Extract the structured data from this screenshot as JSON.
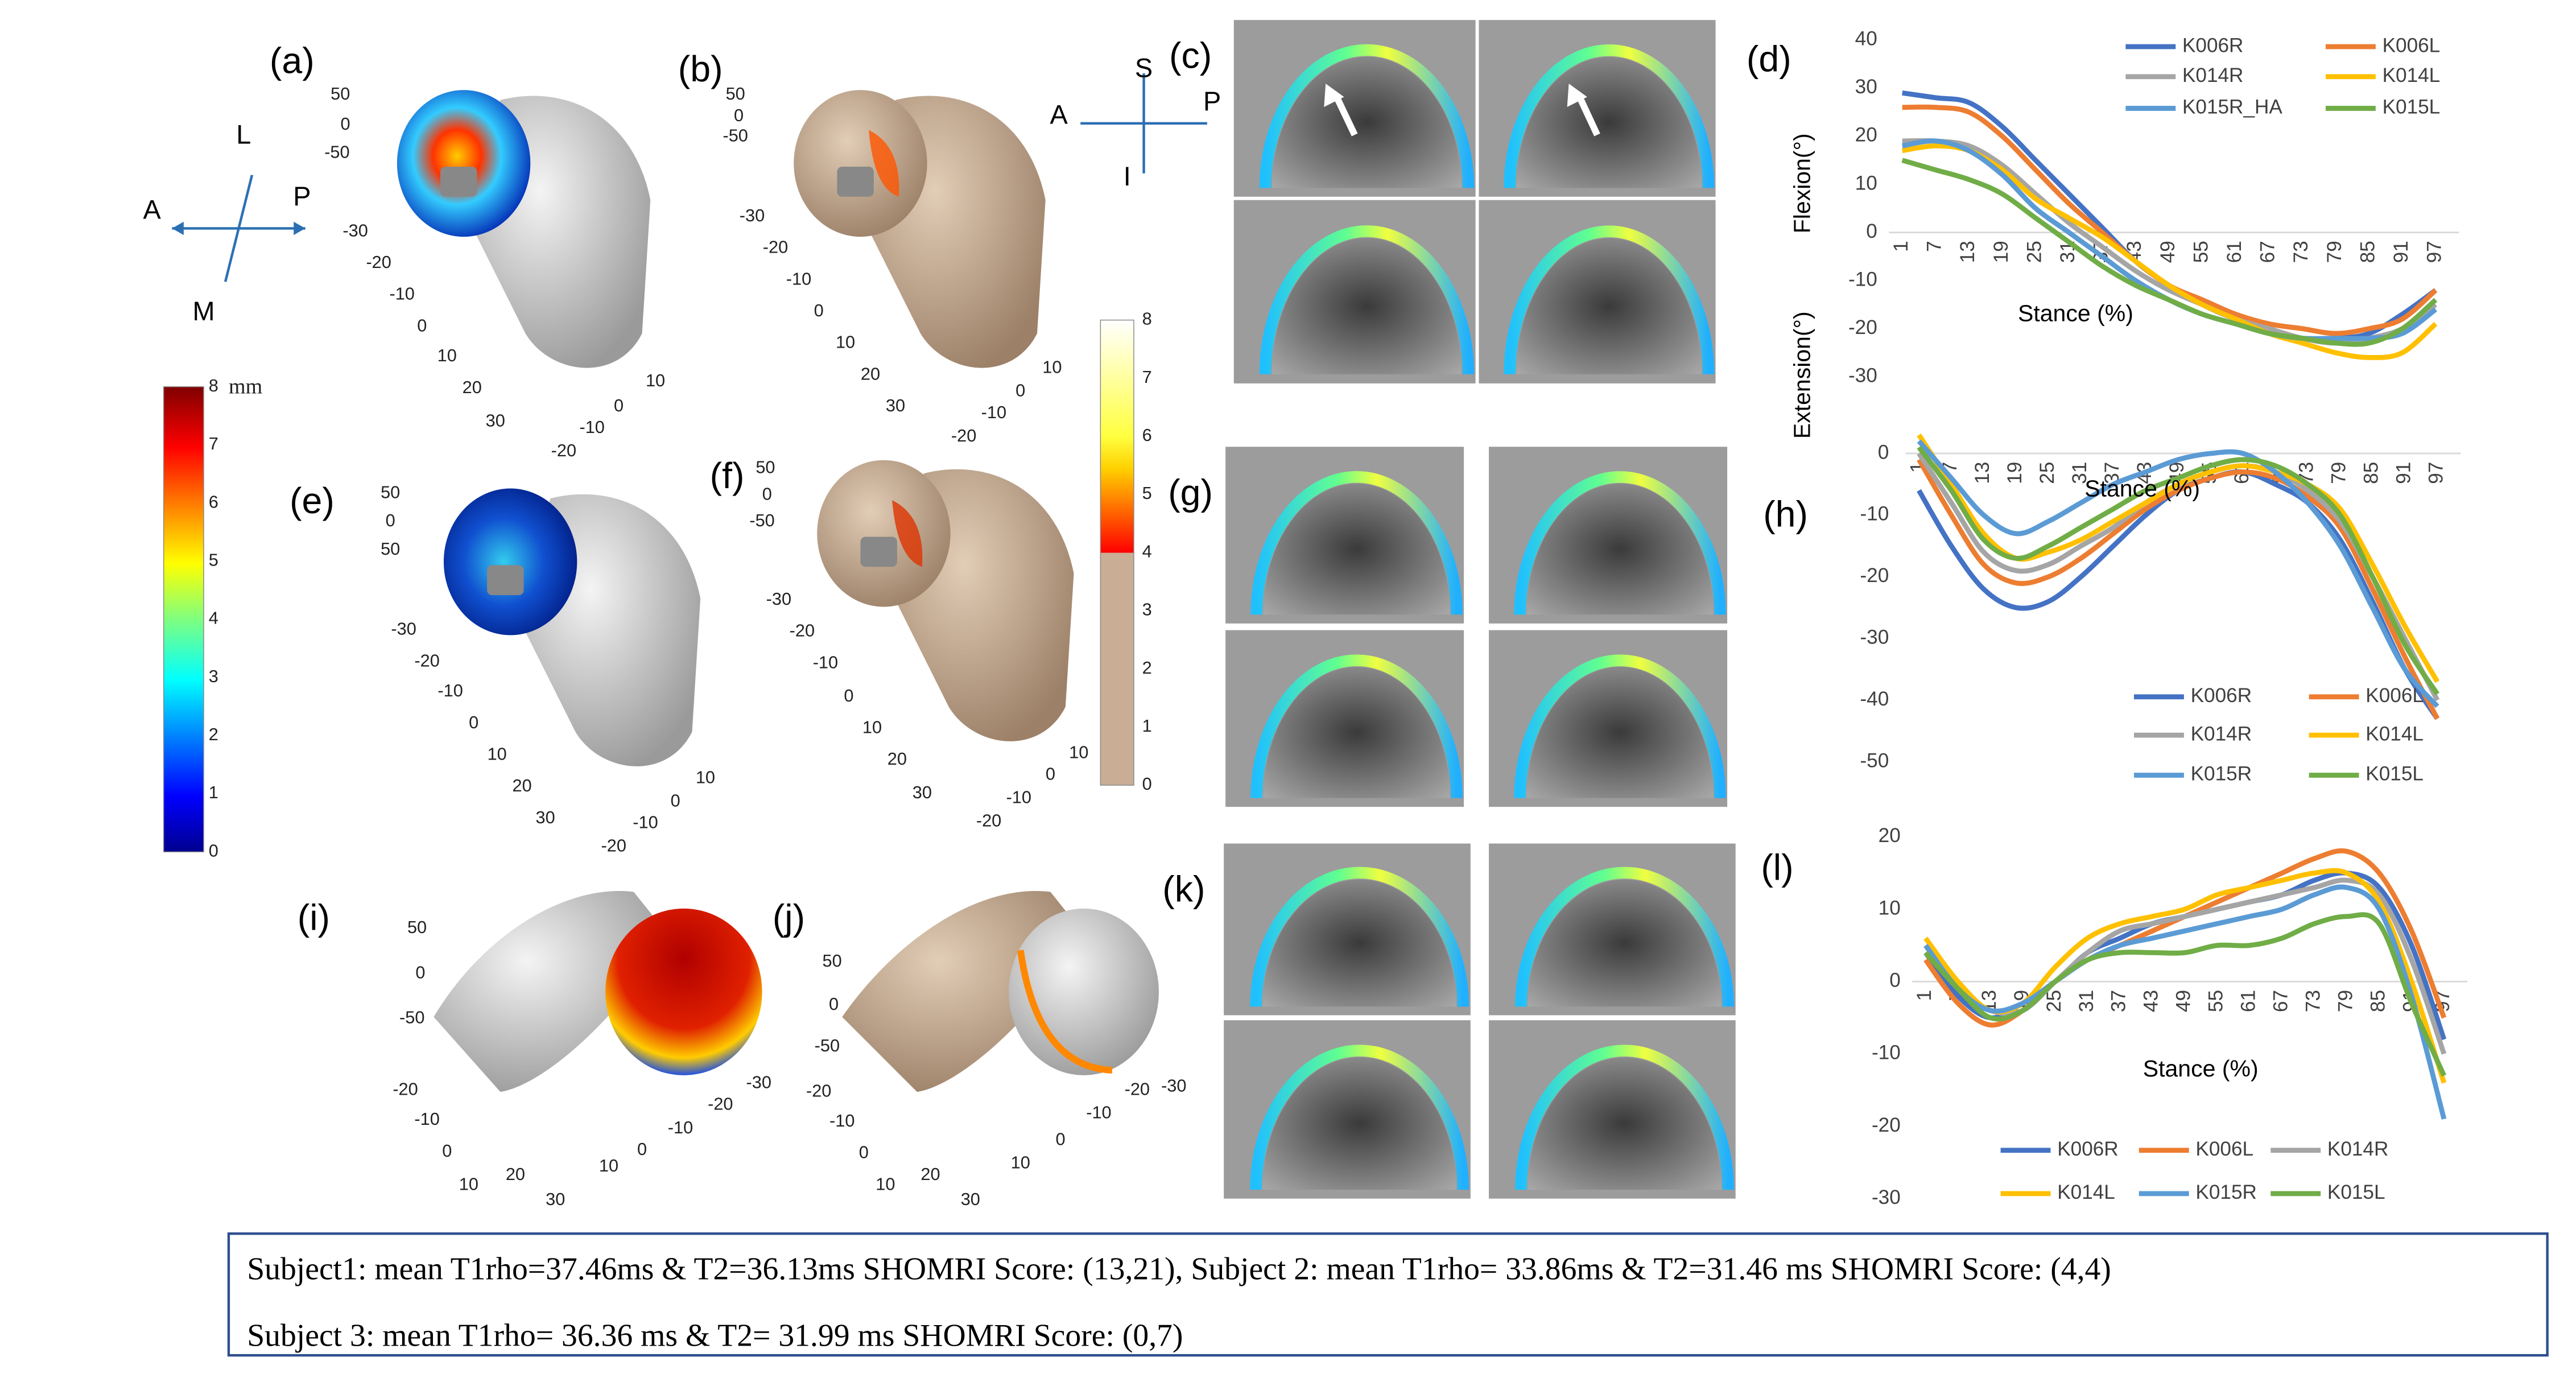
{
  "panels": [
    "(a)",
    "(b)",
    "(c)",
    "(d)",
    "(e)",
    "(f)",
    "(g)",
    "(h)",
    "(i)",
    "(j)",
    "(k)",
    "(l)"
  ],
  "orientation1": [
    "L",
    "A",
    "P",
    "M"
  ],
  "orientation2": [
    "S",
    "A",
    "P",
    "I"
  ],
  "colorbar1": {
    "unit": "mm",
    "ticks": [
      0,
      1,
      2,
      3,
      4,
      5,
      6,
      7,
      8
    ]
  },
  "colorbar2": {
    "ticks": [
      0,
      1,
      2,
      3,
      4,
      5,
      6,
      7,
      8
    ]
  },
  "render_ticks": {
    "a": [
      "50",
      "0",
      "-50",
      "-30",
      "-20",
      "-10",
      "0",
      "10",
      "20",
      "30",
      "10",
      "0",
      "-10",
      "-20"
    ],
    "b": [
      "50",
      "0",
      "-50",
      "-30",
      "-20",
      "-10",
      "0",
      "10",
      "20",
      "30",
      "10",
      "0",
      "-10",
      "-20"
    ],
    "e": [
      "50",
      "0",
      "50",
      "-30",
      "-20",
      "-10",
      "0",
      "10",
      "20",
      "30",
      "10",
      "0",
      "-10",
      "-20"
    ],
    "f": [
      "50",
      "0",
      "-50",
      "-30",
      "-20",
      "-10",
      "0",
      "10",
      "20",
      "30",
      "10",
      "0",
      "-10",
      "-20"
    ],
    "i": [
      "50",
      "0",
      "-50",
      "-20",
      "-10",
      "0",
      "10",
      "30",
      "20",
      "10",
      "0",
      "-10",
      "-20",
      "-30"
    ],
    "j": [
      "50",
      "0",
      "-50",
      "-20",
      "-10",
      "0",
      "10",
      "30",
      "20",
      "10",
      "0",
      "-10",
      "-20",
      "-30"
    ]
  },
  "caption": [
    "Subject1:  mean T1rho=37.46ms & T2=36.13ms SHOMRI Score: (13,21), Subject 2: mean T1rho= 33.86ms & T2=31.46 ms SHOMRI Score: (4,4)",
    "Subject 3: mean T1rho= 36.36 ms & T2= 31.99 ms SHOMRI Score: (0,7)"
  ],
  "chart_data": [
    {
      "type": "line",
      "y_label": "Flexion(°)",
      "x_label": "Stance (%)",
      "categories": [
        1,
        7,
        13,
        19,
        25,
        31,
        37,
        43,
        49,
        55,
        61,
        67,
        73,
        79,
        85,
        91,
        97
      ],
      "ylim": [
        -30,
        40
      ],
      "yticks": [
        -30,
        -20,
        -10,
        0,
        10,
        20,
        30,
        40
      ],
      "series": [
        {
          "name": "K006R",
          "color": "#4472c4",
          "values": [
            29,
            28,
            27,
            22,
            15,
            8,
            1,
            -6,
            -11,
            -15,
            -18,
            -20,
            -22,
            -22,
            -21,
            -17,
            -12
          ]
        },
        {
          "name": "K006L",
          "color": "#ed7d31",
          "values": [
            26,
            26,
            25,
            20,
            13,
            6,
            0,
            -6,
            -11,
            -14,
            -17,
            -19,
            -20,
            -21,
            -20,
            -18,
            -12
          ]
        },
        {
          "name": "K014R",
          "color": "#a5a5a5",
          "values": [
            19,
            19,
            18,
            14,
            8,
            2,
            -3,
            -8,
            -12,
            -15,
            -18,
            -20,
            -22,
            -23,
            -22,
            -20,
            -15
          ]
        },
        {
          "name": "K014L",
          "color": "#ffc000",
          "values": [
            17,
            18,
            17,
            13,
            7,
            3,
            -1,
            -6,
            -11,
            -15,
            -18,
            -21,
            -23,
            -25,
            -26,
            -25,
            -19
          ]
        },
        {
          "name": "K015R_HA",
          "color": "#5b9bd5",
          "values": [
            18,
            19,
            17,
            12,
            5,
            0,
            -5,
            -10,
            -14,
            -17,
            -19,
            -21,
            -22,
            -22,
            -22,
            -21,
            -16
          ]
        },
        {
          "name": "K015L",
          "color": "#70ad47",
          "values": [
            15,
            13,
            11,
            8,
            3,
            -2,
            -7,
            -11,
            -14,
            -17,
            -19,
            -21,
            -22,
            -23,
            -23,
            -20,
            -14
          ]
        }
      ]
    },
    {
      "type": "line",
      "y_label": "Extension(°)",
      "x_label": "Stance (%)",
      "categories": [
        1,
        7,
        13,
        19,
        25,
        31,
        37,
        43,
        49,
        55,
        61,
        67,
        73,
        79,
        85,
        91,
        97
      ],
      "ylim": [
        -50,
        0
      ],
      "yticks": [
        -50,
        -40,
        -30,
        -20,
        -10,
        0
      ],
      "series": [
        {
          "name": "K006R",
          "color": "#4472c4",
          "values": [
            -6,
            -15,
            -22,
            -25,
            -24,
            -20,
            -15,
            -10,
            -6,
            -4,
            -3,
            -5,
            -8,
            -14,
            -24,
            -35,
            -43
          ]
        },
        {
          "name": "K006L",
          "color": "#ed7d31",
          "values": [
            -1,
            -10,
            -18,
            -21,
            -20,
            -17,
            -13,
            -9,
            -6,
            -4,
            -3,
            -4,
            -7,
            -12,
            -22,
            -33,
            -43
          ]
        },
        {
          "name": "K014R",
          "color": "#a5a5a5",
          "values": [
            0,
            -8,
            -16,
            -19,
            -18,
            -15,
            -12,
            -8,
            -5,
            -3,
            -2,
            -3,
            -6,
            -11,
            -20,
            -30,
            -40
          ]
        },
        {
          "name": "K014L",
          "color": "#ffc000",
          "values": [
            3,
            -5,
            -13,
            -17,
            -16,
            -14,
            -11,
            -8,
            -5,
            -3,
            -2,
            -3,
            -5,
            -9,
            -18,
            -28,
            -37
          ]
        },
        {
          "name": "K015R",
          "color": "#5b9bd5",
          "values": [
            2,
            -4,
            -10,
            -13,
            -11,
            -8,
            -5,
            -3,
            -1,
            0,
            0,
            -3,
            -8,
            -15,
            -25,
            -35,
            -41
          ]
        },
        {
          "name": "K015L",
          "color": "#70ad47",
          "values": [
            1,
            -6,
            -14,
            -17,
            -15,
            -12,
            -9,
            -6,
            -4,
            -2,
            -1,
            -2,
            -5,
            -10,
            -20,
            -31,
            -39
          ]
        }
      ]
    },
    {
      "type": "line",
      "x_label": "Stance (%)",
      "categories": [
        1,
        7,
        13,
        19,
        25,
        31,
        37,
        43,
        49,
        55,
        61,
        67,
        73,
        79,
        85,
        91,
        97
      ],
      "ylim": [
        -30,
        20
      ],
      "yticks": [
        -30,
        -20,
        -10,
        0,
        10,
        20
      ],
      "series": [
        {
          "name": "K006R",
          "color": "#4472c4",
          "values": [
            4,
            -2,
            -5,
            -3,
            0,
            4,
            6,
            8,
            9,
            10,
            11,
            12,
            14,
            15,
            13,
            5,
            -8
          ]
        },
        {
          "name": "K006L",
          "color": "#ed7d31",
          "values": [
            3,
            -3,
            -6,
            -4,
            0,
            3,
            5,
            7,
            9,
            11,
            13,
            15,
            17,
            18,
            15,
            7,
            -5
          ]
        },
        {
          "name": "K014R",
          "color": "#a5a5a5",
          "values": [
            5,
            -1,
            -4,
            -4,
            0,
            4,
            7,
            8,
            9,
            10,
            11,
            12,
            13,
            14,
            12,
            3,
            -10
          ]
        },
        {
          "name": "K014L",
          "color": "#ffc000",
          "values": [
            6,
            0,
            -4,
            -3,
            2,
            6,
            8,
            9,
            10,
            12,
            13,
            14,
            15,
            15,
            11,
            0,
            -14
          ]
        },
        {
          "name": "K015R",
          "color": "#5b9bd5",
          "values": [
            5,
            -1,
            -4,
            -3,
            0,
            3,
            5,
            6,
            7,
            8,
            9,
            10,
            12,
            13,
            10,
            -2,
            -19
          ]
        },
        {
          "name": "K015L",
          "color": "#70ad47",
          "values": [
            4,
            -1,
            -5,
            -4,
            0,
            3,
            4,
            4,
            4,
            5,
            5,
            6,
            8,
            9,
            8,
            -3,
            -13
          ]
        }
      ]
    }
  ]
}
